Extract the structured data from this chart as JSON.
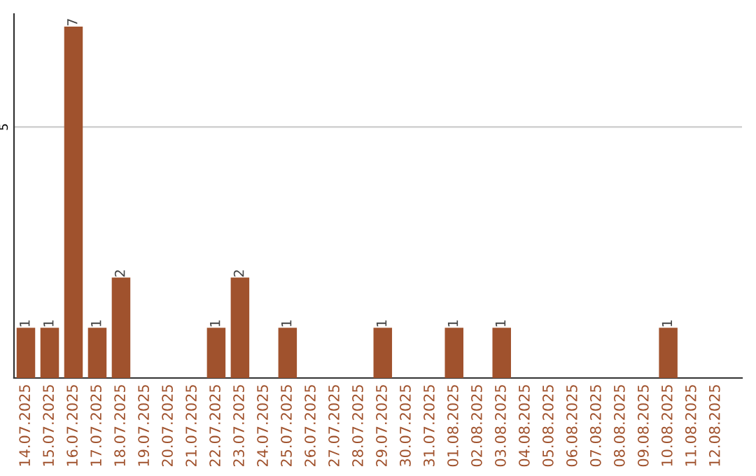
{
  "chart_data": {
    "type": "bar",
    "categories": [
      "14.07.2025",
      "15.07.2025",
      "16.07.2025",
      "17.07.2025",
      "18.07.2025",
      "19.07.2025",
      "20.07.2025",
      "21.07.2025",
      "22.07.2025",
      "23.07.2025",
      "24.07.2025",
      "25.07.2025",
      "26.07.2025",
      "27.07.2025",
      "28.07.2025",
      "29.07.2025",
      "30.07.2025",
      "31.07.2025",
      "01.08.2025",
      "02.08.2025",
      "03.08.2025",
      "04.08.2025",
      "05.08.2025",
      "06.08.2025",
      "07.08.2025",
      "08.08.2025",
      "09.08.2025",
      "10.08.2025",
      "11.08.2025",
      "12.08.2025"
    ],
    "values": [
      1,
      1,
      7,
      1,
      2,
      0,
      0,
      0,
      1,
      2,
      0,
      1,
      0,
      0,
      0,
      1,
      0,
      0,
      1,
      0,
      1,
      0,
      0,
      0,
      0,
      0,
      0,
      1,
      0,
      0
    ],
    "value_labels": [
      "1",
      "1",
      "7",
      "1",
      "2",
      null,
      null,
      null,
      "1",
      "2",
      null,
      "1",
      null,
      null,
      null,
      "1",
      null,
      null,
      "1",
      null,
      "1",
      null,
      null,
      null,
      null,
      null,
      null,
      "1",
      null,
      null
    ],
    "color": "#a0522d",
    "ylim": [
      0,
      7.25
    ],
    "yticks": [
      5
    ],
    "grid": "y",
    "legend": false
  }
}
